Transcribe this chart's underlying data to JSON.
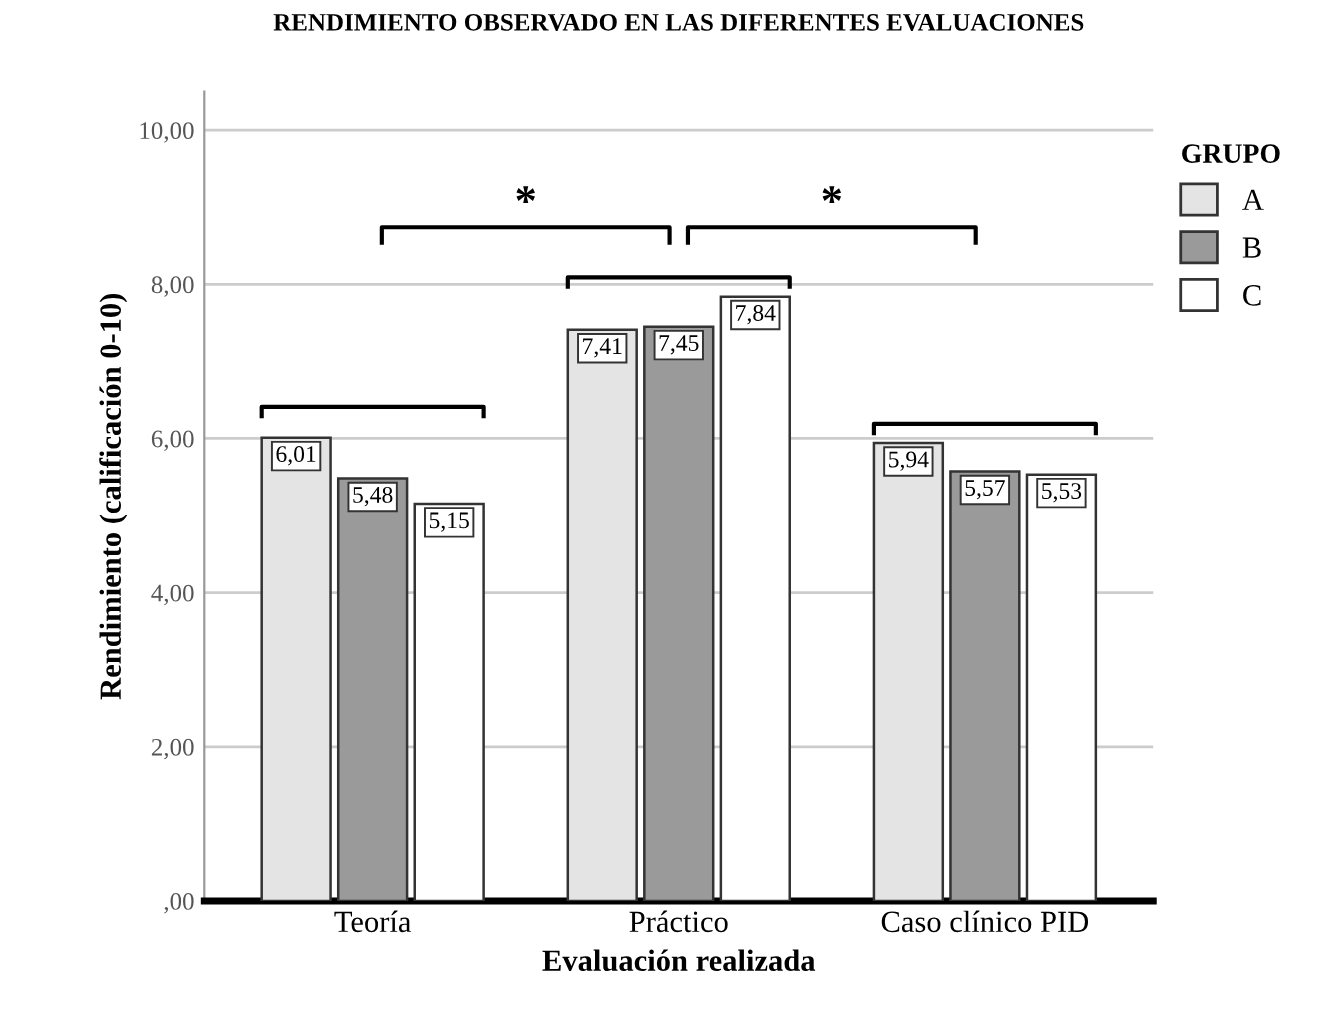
{
  "chart_data": {
    "type": "bar",
    "title": "RENDIMIENTO OBSERVADO EN LAS DIFERENTES EVALUACIONES",
    "xlabel": "Evaluación realizada",
    "ylabel": "Rendimiento (calificación 0-10)",
    "categories": [
      "Teoría",
      "Práctico",
      "Caso clínico PID"
    ],
    "series": [
      {
        "name": "A",
        "color": "#e4e4e4",
        "values": [
          6.01,
          7.41,
          5.94
        ],
        "value_labels": [
          "6,01",
          "7,41",
          "5,94"
        ]
      },
      {
        "name": "B",
        "color": "#9a9a9a",
        "values": [
          5.48,
          7.45,
          5.57
        ],
        "value_labels": [
          "5,48",
          "7,45",
          "5,57"
        ]
      },
      {
        "name": "C",
        "color": "#ffffff",
        "values": [
          5.15,
          7.84,
          5.53
        ],
        "value_labels": [
          "5,15",
          "7,84",
          "5,53"
        ]
      }
    ],
    "legend_title": "GRUPO",
    "legend": "top right",
    "ylim": [
      0,
      10.5
    ],
    "yticks": [
      {
        "value": 0,
        "label": ",00"
      },
      {
        "value": 2,
        "label": "2,00"
      },
      {
        "value": 4,
        "label": "4,00"
      },
      {
        "value": 6,
        "label": "6,00"
      },
      {
        "value": 8,
        "label": "8,00"
      },
      {
        "value": 10,
        "label": "10,00"
      }
    ],
    "grid": "y",
    "annotations": [
      "*",
      "*"
    ]
  }
}
